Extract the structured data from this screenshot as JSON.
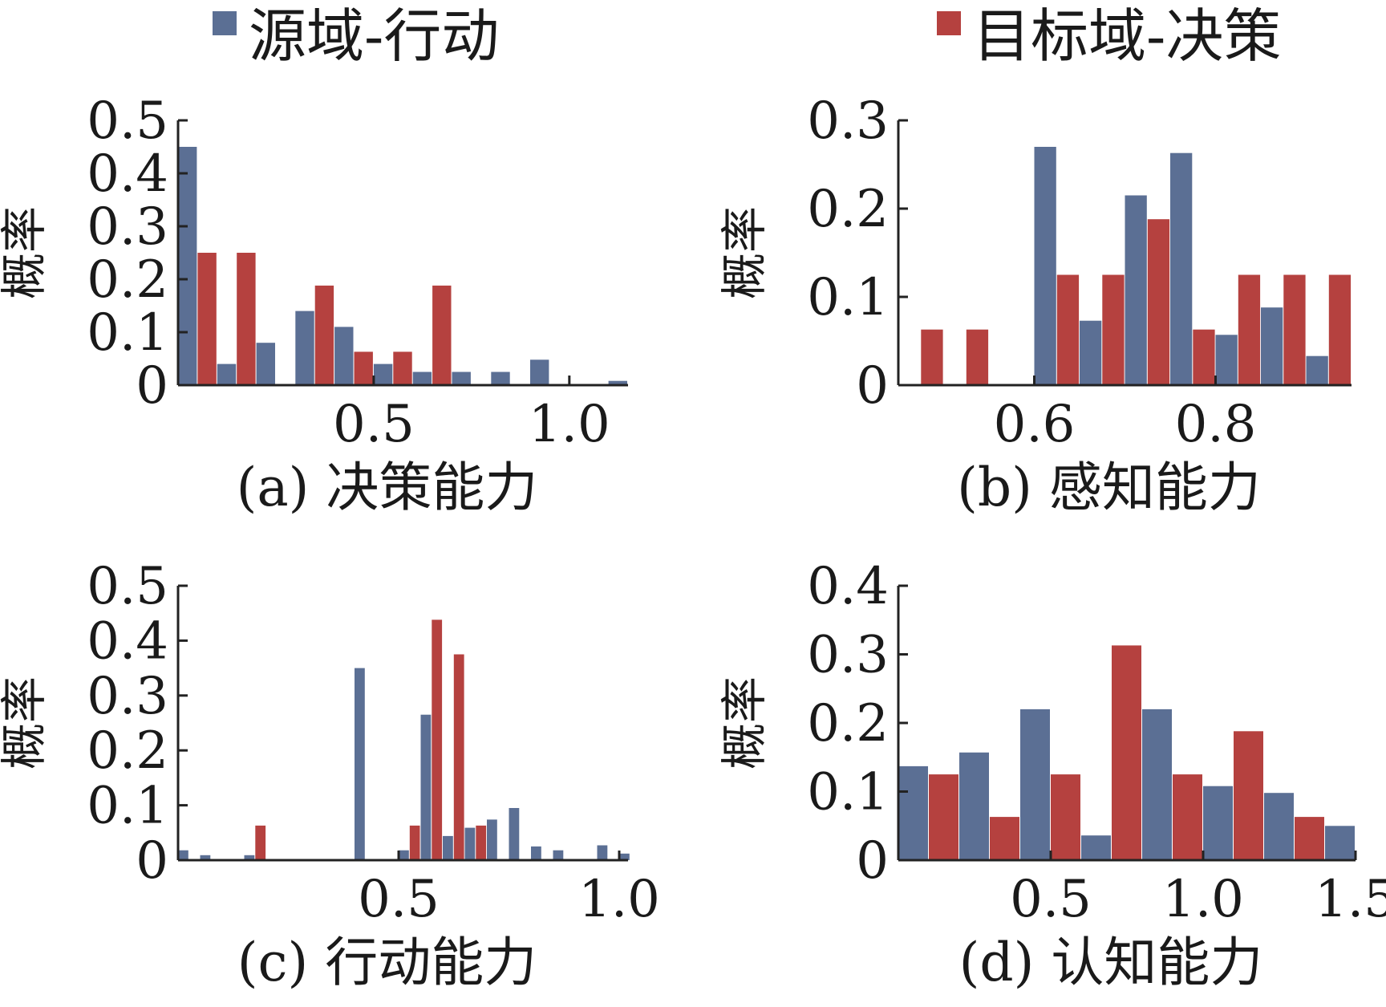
{
  "legend": [
    {
      "label": "源域-行动",
      "color": "#5b6f94"
    },
    {
      "label": "目标域-决策",
      "color": "#b5413f"
    }
  ],
  "chart_data": [
    {
      "type": "bar",
      "caption": "(a) 决策能力",
      "ylabel": "概率",
      "ylim": [
        0,
        0.5
      ],
      "yticks": [
        "0",
        "0.1",
        "0.2",
        "0.3",
        "0.4",
        "0.5"
      ],
      "xlim": [
        0.0,
        1.15
      ],
      "xticks": [
        {
          "v": 0.5,
          "label": "0.5"
        },
        {
          "v": 1.0,
          "label": "1.0"
        }
      ],
      "bin_width": 0.1,
      "series": [
        {
          "name": "源域-行动",
          "color": "#5b6f94",
          "points": [
            {
              "x": 0.0,
              "y": 0.45
            },
            {
              "x": 0.1,
              "y": 0.04
            },
            {
              "x": 0.2,
              "y": 0.08
            },
            {
              "x": 0.3,
              "y": 0.14
            },
            {
              "x": 0.4,
              "y": 0.11
            },
            {
              "x": 0.5,
              "y": 0.04
            },
            {
              "x": 0.6,
              "y": 0.025
            },
            {
              "x": 0.7,
              "y": 0.025
            },
            {
              "x": 0.8,
              "y": 0.025
            },
            {
              "x": 0.9,
              "y": 0.048
            },
            {
              "x": 1.1,
              "y": 0.008
            }
          ]
        },
        {
          "name": "目标域-决策",
          "color": "#b5413f",
          "points": [
            {
              "x": 0.0,
              "y": 0.25
            },
            {
              "x": 0.1,
              "y": 0.25
            },
            {
              "x": 0.3,
              "y": 0.188
            },
            {
              "x": 0.4,
              "y": 0.063
            },
            {
              "x": 0.5,
              "y": 0.063
            },
            {
              "x": 0.6,
              "y": 0.188
            }
          ]
        }
      ]
    },
    {
      "type": "bar",
      "caption": "(b) 感知能力",
      "ylabel": "概率",
      "ylim": [
        0,
        0.3
      ],
      "yticks": [
        "0",
        "0.1",
        "0.2",
        "0.3"
      ],
      "xlim": [
        0.45,
        0.95
      ],
      "xticks": [
        {
          "v": 0.6,
          "label": "0.6"
        },
        {
          "v": 0.8,
          "label": "0.8"
        }
      ],
      "bin_width": 0.05,
      "series": [
        {
          "name": "源域-行动",
          "color": "#5b6f94",
          "points": [
            {
              "x": 0.6,
              "y": 0.27
            },
            {
              "x": 0.65,
              "y": 0.073
            },
            {
              "x": 0.7,
              "y": 0.215
            },
            {
              "x": 0.75,
              "y": 0.263
            },
            {
              "x": 0.8,
              "y": 0.057
            },
            {
              "x": 0.85,
              "y": 0.088
            },
            {
              "x": 0.9,
              "y": 0.033
            }
          ]
        },
        {
          "name": "目标域-决策",
          "color": "#b5413f",
          "points": [
            {
              "x": 0.45,
              "y": 0.063
            },
            {
              "x": 0.5,
              "y": 0.063
            },
            {
              "x": 0.6,
              "y": 0.125
            },
            {
              "x": 0.65,
              "y": 0.125
            },
            {
              "x": 0.7,
              "y": 0.188
            },
            {
              "x": 0.75,
              "y": 0.063
            },
            {
              "x": 0.8,
              "y": 0.125
            },
            {
              "x": 0.85,
              "y": 0.125
            },
            {
              "x": 0.9,
              "y": 0.125
            }
          ]
        }
      ]
    },
    {
      "type": "bar",
      "caption": "(c) 行动能力",
      "ylabel": "概率",
      "ylim": [
        0,
        0.5
      ],
      "yticks": [
        "0",
        "0.1",
        "0.2",
        "0.3",
        "0.4",
        "0.5"
      ],
      "xlim": [
        0.0,
        1.02
      ],
      "xticks": [
        {
          "v": 0.5,
          "label": "0.5"
        },
        {
          "v": 1.0,
          "label": "1.0"
        }
      ],
      "bin_width": 0.05,
      "series": [
        {
          "name": "源域-行动",
          "color": "#5b6f94",
          "points": [
            {
              "x": 0.0,
              "y": 0.018
            },
            {
              "x": 0.05,
              "y": 0.009
            },
            {
              "x": 0.15,
              "y": 0.009
            },
            {
              "x": 0.4,
              "y": 0.35
            },
            {
              "x": 0.5,
              "y": 0.018
            },
            {
              "x": 0.55,
              "y": 0.265
            },
            {
              "x": 0.6,
              "y": 0.044
            },
            {
              "x": 0.65,
              "y": 0.059
            },
            {
              "x": 0.7,
              "y": 0.074
            },
            {
              "x": 0.75,
              "y": 0.095
            },
            {
              "x": 0.8,
              "y": 0.025
            },
            {
              "x": 0.85,
              "y": 0.018
            },
            {
              "x": 0.95,
              "y": 0.027
            },
            {
              "x": 1.0,
              "y": 0.012
            }
          ]
        },
        {
          "name": "目标域-决策",
          "color": "#b5413f",
          "points": [
            {
              "x": 0.15,
              "y": 0.063
            },
            {
              "x": 0.5,
              "y": 0.063
            },
            {
              "x": 0.55,
              "y": 0.438
            },
            {
              "x": 0.6,
              "y": 0.375
            },
            {
              "x": 0.65,
              "y": 0.063
            }
          ]
        }
      ]
    },
    {
      "type": "bar",
      "caption": "(d) 认知能力",
      "ylabel": "概率",
      "ylim": [
        0,
        0.4
      ],
      "yticks": [
        "0",
        "0.1",
        "0.2",
        "0.3",
        "0.4"
      ],
      "xlim": [
        0.0,
        1.5
      ],
      "xticks": [
        {
          "v": 0.5,
          "label": "0.5"
        },
        {
          "v": 1.0,
          "label": "1.0"
        },
        {
          "v": 1.5,
          "label": "1.5"
        }
      ],
      "bin_width": 0.2,
      "series": [
        {
          "name": "源域-行动",
          "color": "#5b6f94",
          "points": [
            {
              "x": 0.0,
              "y": 0.137
            },
            {
              "x": 0.2,
              "y": 0.157
            },
            {
              "x": 0.4,
              "y": 0.22
            },
            {
              "x": 0.6,
              "y": 0.036
            },
            {
              "x": 0.8,
              "y": 0.22
            },
            {
              "x": 1.0,
              "y": 0.108
            },
            {
              "x": 1.2,
              "y": 0.098
            },
            {
              "x": 1.4,
              "y": 0.05
            }
          ]
        },
        {
          "name": "目标域-决策",
          "color": "#b5413f",
          "points": [
            {
              "x": 0.0,
              "y": 0.125
            },
            {
              "x": 0.2,
              "y": 0.063
            },
            {
              "x": 0.4,
              "y": 0.125
            },
            {
              "x": 0.6,
              "y": 0.313
            },
            {
              "x": 0.8,
              "y": 0.125
            },
            {
              "x": 1.0,
              "y": 0.188
            },
            {
              "x": 1.2,
              "y": 0.063
            }
          ]
        }
      ]
    }
  ]
}
